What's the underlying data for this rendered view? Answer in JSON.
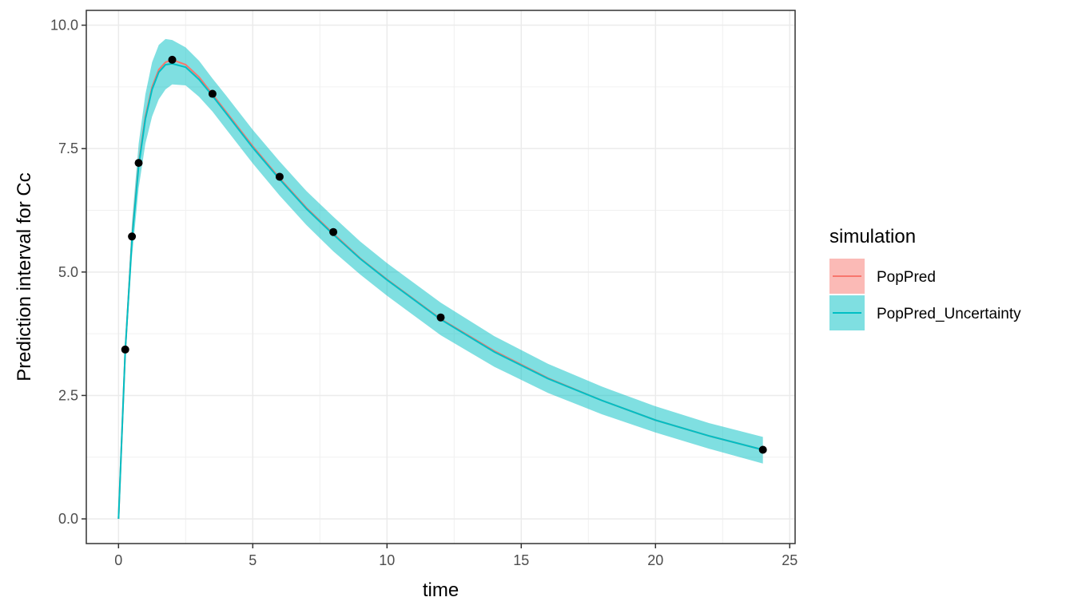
{
  "chart_data": {
    "type": "line",
    "title": "",
    "xlabel": "time",
    "ylabel": "Prediction interval for Cc",
    "xlim": [
      -1.2,
      25.2
    ],
    "ylim": [
      -0.5,
      10.3
    ],
    "x_ticks": [
      0,
      5,
      10,
      15,
      20,
      25
    ],
    "x_tick_labels": [
      "0",
      "5",
      "10",
      "15",
      "20",
      "25"
    ],
    "y_ticks": [
      0.0,
      2.5,
      5.0,
      7.5,
      10.0
    ],
    "y_tick_labels": [
      "0.0",
      "2.5",
      "5.0",
      "7.5",
      "10.0"
    ],
    "grid": true,
    "legend": {
      "title": "simulation",
      "position": "right",
      "entries": [
        {
          "label": "PopPred",
          "line_color": "#F8766D",
          "fill_color": "#F8766D"
        },
        {
          "label": "PopPred_Uncertainty",
          "line_color": "#00BFC4",
          "fill_color": "#00BFC4"
        }
      ]
    },
    "series": [
      {
        "name": "PopPred",
        "color": "#F8766D",
        "x": [
          0,
          0.25,
          0.5,
          0.75,
          1.0,
          1.25,
          1.5,
          1.75,
          2.0,
          2.5,
          3.0,
          3.5,
          4,
          5,
          6,
          7,
          8,
          9,
          10,
          12,
          14,
          16,
          18,
          20,
          22,
          24
        ],
        "y": [
          0,
          3.4,
          5.7,
          7.2,
          8.15,
          8.75,
          9.1,
          9.25,
          9.3,
          9.2,
          8.95,
          8.6,
          8.25,
          7.55,
          6.9,
          6.3,
          5.78,
          5.28,
          4.85,
          4.05,
          3.4,
          2.85,
          2.4,
          2.0,
          1.68,
          1.4
        ]
      },
      {
        "name": "PopPred_Uncertainty",
        "color": "#00BFC4",
        "x": [
          0,
          0.25,
          0.5,
          0.75,
          1.0,
          1.25,
          1.5,
          1.75,
          2.0,
          2.5,
          3.0,
          3.5,
          4,
          5,
          6,
          7,
          8,
          9,
          10,
          12,
          14,
          16,
          18,
          20,
          22,
          24
        ],
        "y": [
          0,
          3.4,
          5.65,
          7.15,
          8.1,
          8.7,
          9.05,
          9.2,
          9.22,
          9.15,
          8.9,
          8.57,
          8.22,
          7.52,
          6.88,
          6.28,
          5.76,
          5.27,
          4.84,
          4.04,
          3.38,
          2.84,
          2.4,
          2.0,
          1.68,
          1.4
        ],
        "lower": [
          0,
          3.2,
          5.3,
          6.7,
          7.6,
          8.15,
          8.5,
          8.7,
          8.8,
          8.78,
          8.55,
          8.25,
          7.9,
          7.2,
          6.55,
          5.95,
          5.42,
          4.95,
          4.52,
          3.72,
          3.08,
          2.55,
          2.12,
          1.75,
          1.42,
          1.12
        ],
        "upper": [
          0,
          3.6,
          6.0,
          7.6,
          8.6,
          9.25,
          9.6,
          9.72,
          9.7,
          9.55,
          9.28,
          8.92,
          8.58,
          7.88,
          7.24,
          6.64,
          6.12,
          5.62,
          5.18,
          4.38,
          3.7,
          3.14,
          2.68,
          2.28,
          1.94,
          1.66
        ]
      }
    ],
    "observed_points": {
      "x": [
        0.25,
        0.5,
        0.75,
        2.0,
        3.5,
        6,
        8,
        12,
        24
      ],
      "y": [
        3.43,
        5.72,
        7.21,
        9.3,
        8.61,
        6.93,
        5.81,
        4.08,
        1.4
      ]
    }
  }
}
